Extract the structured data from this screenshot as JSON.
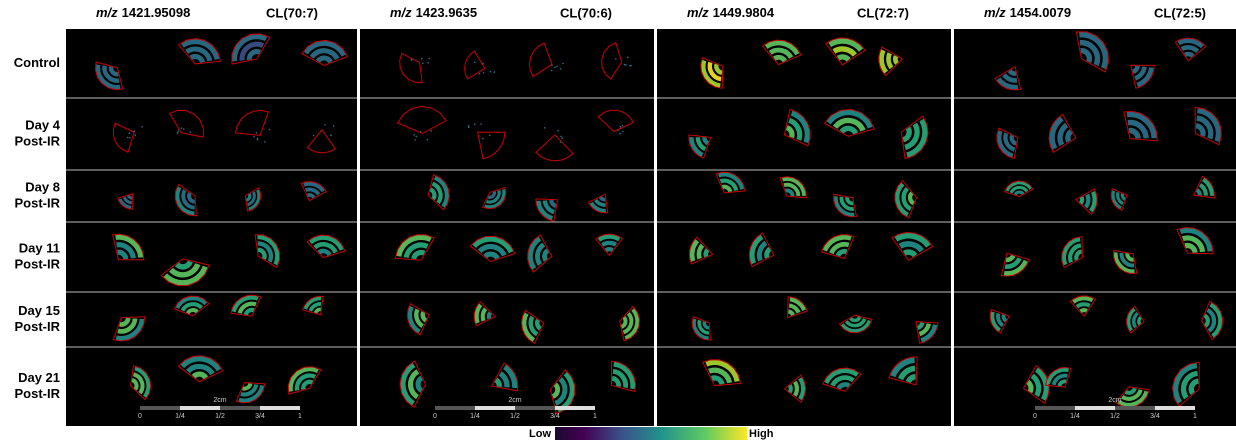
{
  "figure": {
    "columns": [
      {
        "mz_prefix": "m/z",
        "mz": "1421.95098",
        "lipid": "CL(70:7)"
      },
      {
        "mz_prefix": "m/z",
        "mz": "1423.9635",
        "lipid": "CL(70:6)"
      },
      {
        "mz_prefix": "m/z",
        "mz": "1449.9804",
        "lipid": "CL(72:7)"
      },
      {
        "mz_prefix": "m/z",
        "mz": "1454.0079",
        "lipid": "CL(72:5)"
      }
    ],
    "rows": [
      [
        "Control"
      ],
      [
        "Day 4",
        "Post-IR"
      ],
      [
        "Day 8",
        "Post-IR"
      ],
      [
        "Day 11",
        "Post-IR"
      ],
      [
        "Day 15",
        "Post-IR"
      ],
      [
        "Day 21",
        "Post-IR"
      ]
    ],
    "scale_bars": [
      {
        "label": "2cm",
        "ticks": [
          "0",
          "1/4",
          "1/2",
          "3/4",
          "1"
        ]
      },
      {
        "label": "2cm",
        "ticks": [
          "0",
          "1/4",
          "1/2",
          "3/4",
          "1"
        ]
      },
      {
        "label": "2cm",
        "ticks": [
          "0",
          "1/4",
          "1/2",
          "3/4",
          "1"
        ]
      }
    ],
    "colorbar": {
      "low": "Low",
      "high": "High"
    }
  }
}
